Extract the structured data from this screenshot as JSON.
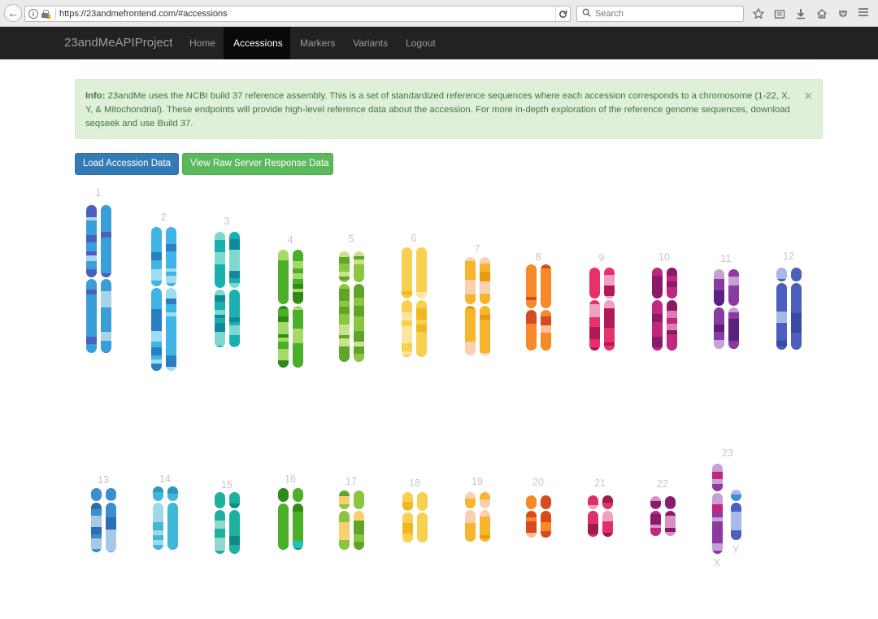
{
  "browser": {
    "url": "https://23andmefrontend.com/#accessions",
    "search_placeholder": "Search",
    "reload_glyph": "C",
    "back_glyph": "←",
    "info_glyph": "i"
  },
  "navbar": {
    "brand": "23andMeAPIProject",
    "items": [
      "Home",
      "Accessions",
      "Markers",
      "Variants",
      "Logout"
    ],
    "active": "Accessions"
  },
  "alert": {
    "label": "Info:",
    "text": " 23andMe uses the NCBI build 37 reference assembly. This is a set of standardized reference sequences where each accession corresponds to a chromosome (1-22, X, Y, & Mitochondrial). These endpoints will provide high-level reference data about the accession. For more in-depth exploration of the reference genome sequences, download seqseek and use Build 37.",
    "close": "×"
  },
  "buttons": {
    "load": "Load Accession Data",
    "raw": "View Raw Server Response Data"
  },
  "chromosomes": [
    {
      "label": "1",
      "color": "#3a9fd8",
      "dark": "#4a5fc0",
      "light": "#a8d4ea"
    },
    {
      "label": "2",
      "color": "#40b4e4",
      "dark": "#2a7fc0",
      "light": "#9fdcef"
    },
    {
      "label": "3",
      "color": "#1ab0b0",
      "dark": "#108a98",
      "light": "#7fd8d0"
    },
    {
      "label": "4",
      "color": "#4caf2a",
      "dark": "#2f8a1a",
      "light": "#a6d86a"
    },
    {
      "label": "5",
      "color": "#8cc63e",
      "dark": "#5ea52a",
      "light": "#c8e48a"
    },
    {
      "label": "6",
      "color": "#f8d050",
      "dark": "#f0b820",
      "light": "#fbe6a0"
    },
    {
      "label": "7",
      "color": "#f7b52c",
      "dark": "#e89a10",
      "light": "#fbd0b0"
    },
    {
      "label": "8",
      "color": "#f68a28",
      "dark": "#d84a20",
      "light": "#fbc09a"
    },
    {
      "label": "9",
      "color": "#e8306a",
      "dark": "#b01a5a",
      "light": "#f0a0c0"
    },
    {
      "label": "10",
      "color": "#c02880",
      "dark": "#8a1a6a",
      "light": "#e07ab0"
    },
    {
      "label": "11",
      "color": "#8a3aa0",
      "dark": "#5a2080",
      "light": "#c8a0d8"
    },
    {
      "label": "12",
      "color": "#4a5fc0",
      "dark": "#3a48a8",
      "light": "#a8b8e8"
    },
    {
      "label": "13",
      "color": "#3a8fd0",
      "dark": "#2a6fb0",
      "light": "#a8c8e8"
    },
    {
      "label": "14",
      "color": "#40b8d8",
      "dark": "#2a98c0",
      "light": "#a0d8e8"
    },
    {
      "label": "15",
      "color": "#20b0a0",
      "dark": "#108a88",
      "light": "#90d8d0"
    },
    {
      "label": "16",
      "color": "#4caf2a",
      "dark": "#2f8a1a",
      "light": "#20c0c0"
    },
    {
      "label": "17",
      "color": "#8cc63e",
      "dark": "#5ea52a",
      "light": "#f8d070"
    },
    {
      "label": "18",
      "color": "#f8d050",
      "dark": "#f0b820",
      "light": "#fbe6a0"
    },
    {
      "label": "19",
      "color": "#f7b52c",
      "dark": "#e89a10",
      "light": "#fbd0b0"
    },
    {
      "label": "20",
      "color": "#f68a28",
      "dark": "#d84a20",
      "light": "#fbc09a"
    },
    {
      "label": "21",
      "color": "#e0306a",
      "dark": "#a01a50",
      "light": "#f0a0c0"
    },
    {
      "label": "22",
      "color": "#c02880",
      "dark": "#8a1a6a",
      "light": "#d890c0"
    },
    {
      "label": "23",
      "color": "#8a3aa0",
      "dark": "#c02880",
      "light": "#c8a0d8"
    }
  ],
  "sex_labels": {
    "x": "X",
    "y": "Y"
  }
}
